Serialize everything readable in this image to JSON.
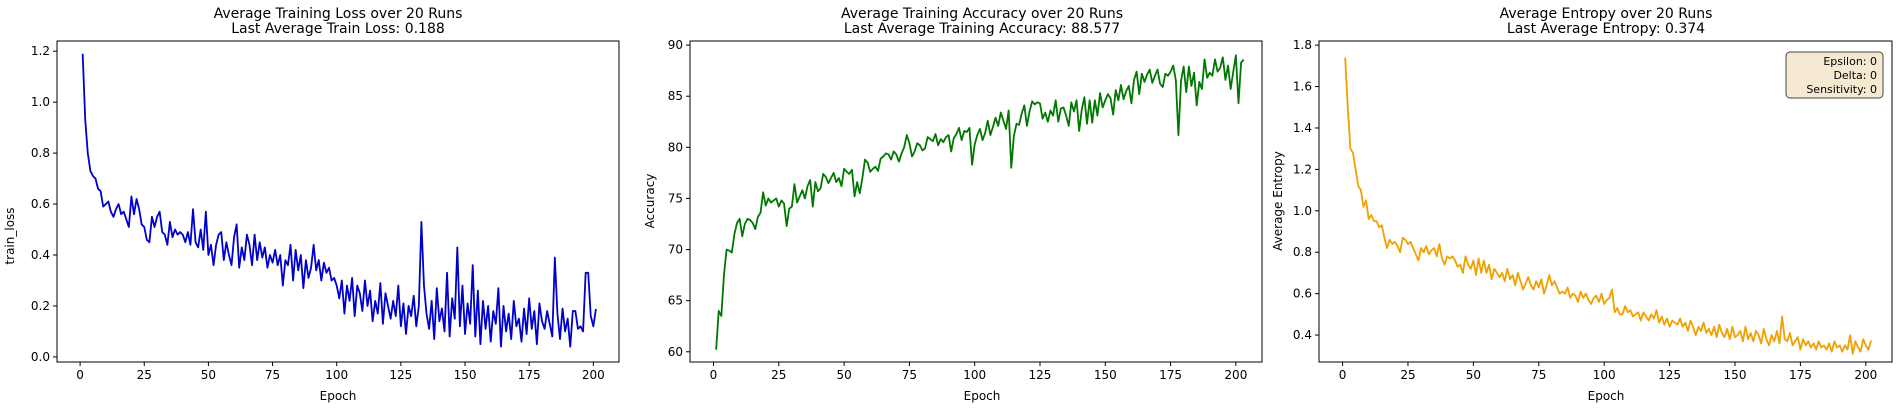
{
  "figure": {
    "background": "#ffffff"
  },
  "chart_data": [
    {
      "type": "line",
      "title": "Average Training Loss over 20 Runs",
      "subtitle": "Last Average Train Loss: 0.188",
      "xlabel": "Epoch",
      "ylabel": "train_loss",
      "xlim": [
        -9,
        210
      ],
      "ylim": [
        -0.02,
        1.24
      ],
      "xticks": [
        0,
        25,
        50,
        75,
        100,
        125,
        150,
        175,
        200
      ],
      "yticks": [
        0.0,
        0.2,
        0.4,
        0.6,
        0.8,
        1.0,
        1.2
      ],
      "ytick_labels": [
        "0.0",
        "0.2",
        "0.4",
        "0.6",
        "0.8",
        "1.0",
        "1.2"
      ],
      "grid": false,
      "series": [
        {
          "color": "#0000cc",
          "x_start": 1,
          "x_step": 1,
          "values": [
            1.19,
            0.93,
            0.8,
            0.73,
            0.71,
            0.7,
            0.66,
            0.65,
            0.59,
            0.6,
            0.61,
            0.57,
            0.55,
            0.58,
            0.6,
            0.56,
            0.57,
            0.54,
            0.51,
            0.63,
            0.56,
            0.62,
            0.58,
            0.52,
            0.51,
            0.46,
            0.45,
            0.55,
            0.51,
            0.55,
            0.57,
            0.49,
            0.48,
            0.44,
            0.53,
            0.47,
            0.5,
            0.48,
            0.49,
            0.48,
            0.45,
            0.49,
            0.44,
            0.58,
            0.45,
            0.43,
            0.5,
            0.42,
            0.57,
            0.4,
            0.44,
            0.36,
            0.44,
            0.48,
            0.49,
            0.38,
            0.45,
            0.4,
            0.36,
            0.47,
            0.52,
            0.35,
            0.43,
            0.38,
            0.48,
            0.44,
            0.36,
            0.48,
            0.38,
            0.45,
            0.39,
            0.43,
            0.35,
            0.4,
            0.37,
            0.42,
            0.36,
            0.4,
            0.28,
            0.38,
            0.36,
            0.44,
            0.3,
            0.42,
            0.34,
            0.4,
            0.27,
            0.38,
            0.31,
            0.35,
            0.44,
            0.34,
            0.38,
            0.3,
            0.37,
            0.33,
            0.35,
            0.3,
            0.31,
            0.28,
            0.23,
            0.3,
            0.17,
            0.28,
            0.22,
            0.31,
            0.16,
            0.28,
            0.25,
            0.18,
            0.3,
            0.2,
            0.26,
            0.14,
            0.22,
            0.17,
            0.29,
            0.13,
            0.25,
            0.2,
            0.15,
            0.22,
            0.16,
            0.28,
            0.12,
            0.21,
            0.09,
            0.2,
            0.16,
            0.24,
            0.12,
            0.2,
            0.53,
            0.28,
            0.17,
            0.11,
            0.22,
            0.07,
            0.27,
            0.14,
            0.19,
            0.1,
            0.33,
            0.08,
            0.23,
            0.15,
            0.43,
            0.12,
            0.28,
            0.09,
            0.21,
            0.13,
            0.36,
            0.08,
            0.26,
            0.05,
            0.22,
            0.11,
            0.2,
            0.06,
            0.18,
            0.13,
            0.27,
            0.04,
            0.2,
            0.1,
            0.17,
            0.07,
            0.22,
            0.12,
            0.15,
            0.06,
            0.19,
            0.09,
            0.23,
            0.11,
            0.18,
            0.05,
            0.21,
            0.14,
            0.11,
            0.18,
            0.13,
            0.08,
            0.39,
            0.17,
            0.07,
            0.19,
            0.1,
            0.15,
            0.04,
            0.18,
            0.18,
            0.11,
            0.12,
            0.1,
            0.33,
            0.33,
            0.16,
            0.12,
            0.188
          ]
        }
      ]
    },
    {
      "type": "line",
      "title": "Average Training Accuracy over 20 Runs",
      "subtitle": "Last Average Training Accuracy: 88.577",
      "xlabel": "Epoch",
      "ylabel": "Accuracy",
      "xlim": [
        -9,
        210
      ],
      "ylim": [
        59.0,
        90.4
      ],
      "xticks": [
        0,
        25,
        50,
        75,
        100,
        125,
        150,
        175,
        200
      ],
      "yticks": [
        60,
        65,
        70,
        75,
        80,
        85,
        90
      ],
      "ytick_labels": [
        "60",
        "65",
        "70",
        "75",
        "80",
        "85",
        "90"
      ],
      "grid": false,
      "series": [
        {
          "color": "#007700",
          "x_start": 1,
          "x_step": 1,
          "values": [
            60.2,
            64.0,
            63.5,
            67.5,
            70.0,
            69.9,
            69.7,
            71.5,
            72.6,
            73.0,
            71.3,
            72.5,
            73.0,
            72.9,
            72.6,
            72.0,
            73.2,
            73.6,
            75.6,
            74.3,
            75.0,
            74.6,
            74.8,
            75.0,
            74.2,
            74.8,
            74.5,
            72.3,
            74.0,
            74.2,
            76.4,
            74.6,
            75.2,
            75.8,
            75.0,
            76.2,
            76.8,
            74.2,
            76.6,
            75.7,
            76.0,
            77.4,
            77.1,
            76.5,
            77.0,
            77.5,
            76.6,
            77.0,
            76.2,
            77.9,
            77.6,
            77.4,
            77.8,
            75.2,
            76.6,
            75.5,
            77.0,
            78.8,
            78.5,
            77.6,
            77.9,
            78.1,
            77.7,
            78.9,
            79.1,
            79.4,
            79.3,
            78.8,
            79.6,
            79.3,
            78.6,
            79.4,
            80.0,
            81.2,
            80.4,
            79.1,
            79.6,
            80.4,
            80.2,
            79.7,
            79.9,
            81.0,
            80.8,
            80.6,
            81.3,
            80.2,
            80.8,
            80.5,
            81.0,
            81.2,
            79.6,
            80.9,
            81.3,
            81.9,
            80.7,
            81.6,
            81.5,
            81.9,
            78.3,
            80.3,
            81.2,
            81.8,
            80.7,
            81.4,
            82.6,
            81.2,
            82.0,
            82.9,
            82.1,
            83.4,
            82.6,
            81.8,
            83.6,
            78.0,
            81.1,
            82.3,
            82.2,
            83.3,
            84.1,
            82.1,
            83.5,
            84.5,
            84.2,
            84.4,
            84.3,
            82.8,
            83.4,
            82.5,
            83.6,
            83.1,
            84.6,
            82.5,
            83.8,
            83.9,
            83.1,
            82.1,
            84.4,
            83.5,
            84.6,
            81.6,
            83.7,
            84.9,
            82.3,
            84.6,
            82.4,
            84.6,
            83.1,
            85.3,
            83.9,
            84.6,
            85.2,
            84.8,
            83.2,
            85.6,
            84.6,
            86.1,
            84.7,
            85.5,
            86.0,
            84.3,
            86.6,
            87.4,
            85.2,
            87.2,
            86.4,
            87.1,
            87.6,
            86.3,
            87.0,
            87.6,
            86.2,
            85.9,
            87.2,
            87.0,
            87.4,
            88.0,
            86.6,
            81.2,
            86.5,
            87.9,
            85.4,
            87.9,
            86.0,
            87.3,
            84.1,
            86.4,
            85.7,
            88.6,
            86.8,
            87.3,
            87.0,
            88.6,
            87.4,
            87.8,
            88.8,
            86.6,
            88.0,
            85.7,
            87.4,
            89.0,
            84.3,
            88.3,
            88.577
          ]
        }
      ]
    },
    {
      "type": "line",
      "title": "Average Entropy over 20 Runs",
      "subtitle": "Last Average Entropy: 0.374",
      "xlabel": "Epoch",
      "ylabel": "Average Entropy",
      "xlim": [
        -9,
        210
      ],
      "ylim": [
        0.27,
        1.82
      ],
      "xticks": [
        0,
        25,
        50,
        75,
        100,
        125,
        150,
        175,
        200
      ],
      "yticks": [
        0.4,
        0.6,
        0.8,
        1.0,
        1.2,
        1.4,
        1.6,
        1.8
      ],
      "ytick_labels": [
        "0.4",
        "0.6",
        "0.8",
        "1.0",
        "1.2",
        "1.4",
        "1.6",
        "1.8"
      ],
      "grid": false,
      "legend_placement": "top-right",
      "annotation": [
        "Epsilon: 0",
        "Delta: 0",
        "Sensitivity: 0"
      ],
      "annotation_bg": "#f5e9d2",
      "series": [
        {
          "color": "#f0a000",
          "x_start": 1,
          "x_step": 1,
          "values": [
            1.74,
            1.5,
            1.3,
            1.28,
            1.2,
            1.12,
            1.1,
            1.02,
            1.05,
            0.96,
            0.98,
            0.95,
            0.95,
            0.92,
            0.93,
            0.87,
            0.82,
            0.86,
            0.84,
            0.85,
            0.83,
            0.8,
            0.87,
            0.86,
            0.84,
            0.85,
            0.82,
            0.79,
            0.76,
            0.82,
            0.8,
            0.83,
            0.79,
            0.81,
            0.82,
            0.78,
            0.84,
            0.77,
            0.74,
            0.78,
            0.77,
            0.78,
            0.76,
            0.73,
            0.74,
            0.7,
            0.78,
            0.74,
            0.72,
            0.76,
            0.69,
            0.77,
            0.7,
            0.76,
            0.7,
            0.74,
            0.67,
            0.72,
            0.7,
            0.68,
            0.7,
            0.66,
            0.72,
            0.67,
            0.69,
            0.64,
            0.7,
            0.66,
            0.62,
            0.65,
            0.68,
            0.64,
            0.62,
            0.66,
            0.63,
            0.67,
            0.6,
            0.64,
            0.69,
            0.64,
            0.66,
            0.63,
            0.6,
            0.61,
            0.6,
            0.63,
            0.58,
            0.6,
            0.59,
            0.56,
            0.61,
            0.58,
            0.6,
            0.57,
            0.55,
            0.58,
            0.59,
            0.56,
            0.6,
            0.55,
            0.57,
            0.58,
            0.62,
            0.51,
            0.53,
            0.5,
            0.5,
            0.54,
            0.51,
            0.52,
            0.49,
            0.5,
            0.51,
            0.47,
            0.51,
            0.49,
            0.47,
            0.5,
            0.48,
            0.52,
            0.46,
            0.49,
            0.45,
            0.48,
            0.44,
            0.47,
            0.46,
            0.45,
            0.48,
            0.44,
            0.46,
            0.42,
            0.47,
            0.44,
            0.4,
            0.44,
            0.42,
            0.46,
            0.41,
            0.43,
            0.4,
            0.44,
            0.39,
            0.45,
            0.41,
            0.39,
            0.43,
            0.38,
            0.44,
            0.39,
            0.4,
            0.42,
            0.37,
            0.44,
            0.38,
            0.41,
            0.37,
            0.42,
            0.4,
            0.36,
            0.43,
            0.38,
            0.35,
            0.4,
            0.37,
            0.42,
            0.36,
            0.49,
            0.38,
            0.37,
            0.41,
            0.35,
            0.37,
            0.39,
            0.33,
            0.38,
            0.35,
            0.37,
            0.34,
            0.36,
            0.33,
            0.37,
            0.34,
            0.35,
            0.33,
            0.36,
            0.32,
            0.37,
            0.34,
            0.35,
            0.32,
            0.35,
            0.33,
            0.4,
            0.31,
            0.37,
            0.34,
            0.32,
            0.38,
            0.35,
            0.33,
            0.374
          ]
        }
      ]
    }
  ]
}
